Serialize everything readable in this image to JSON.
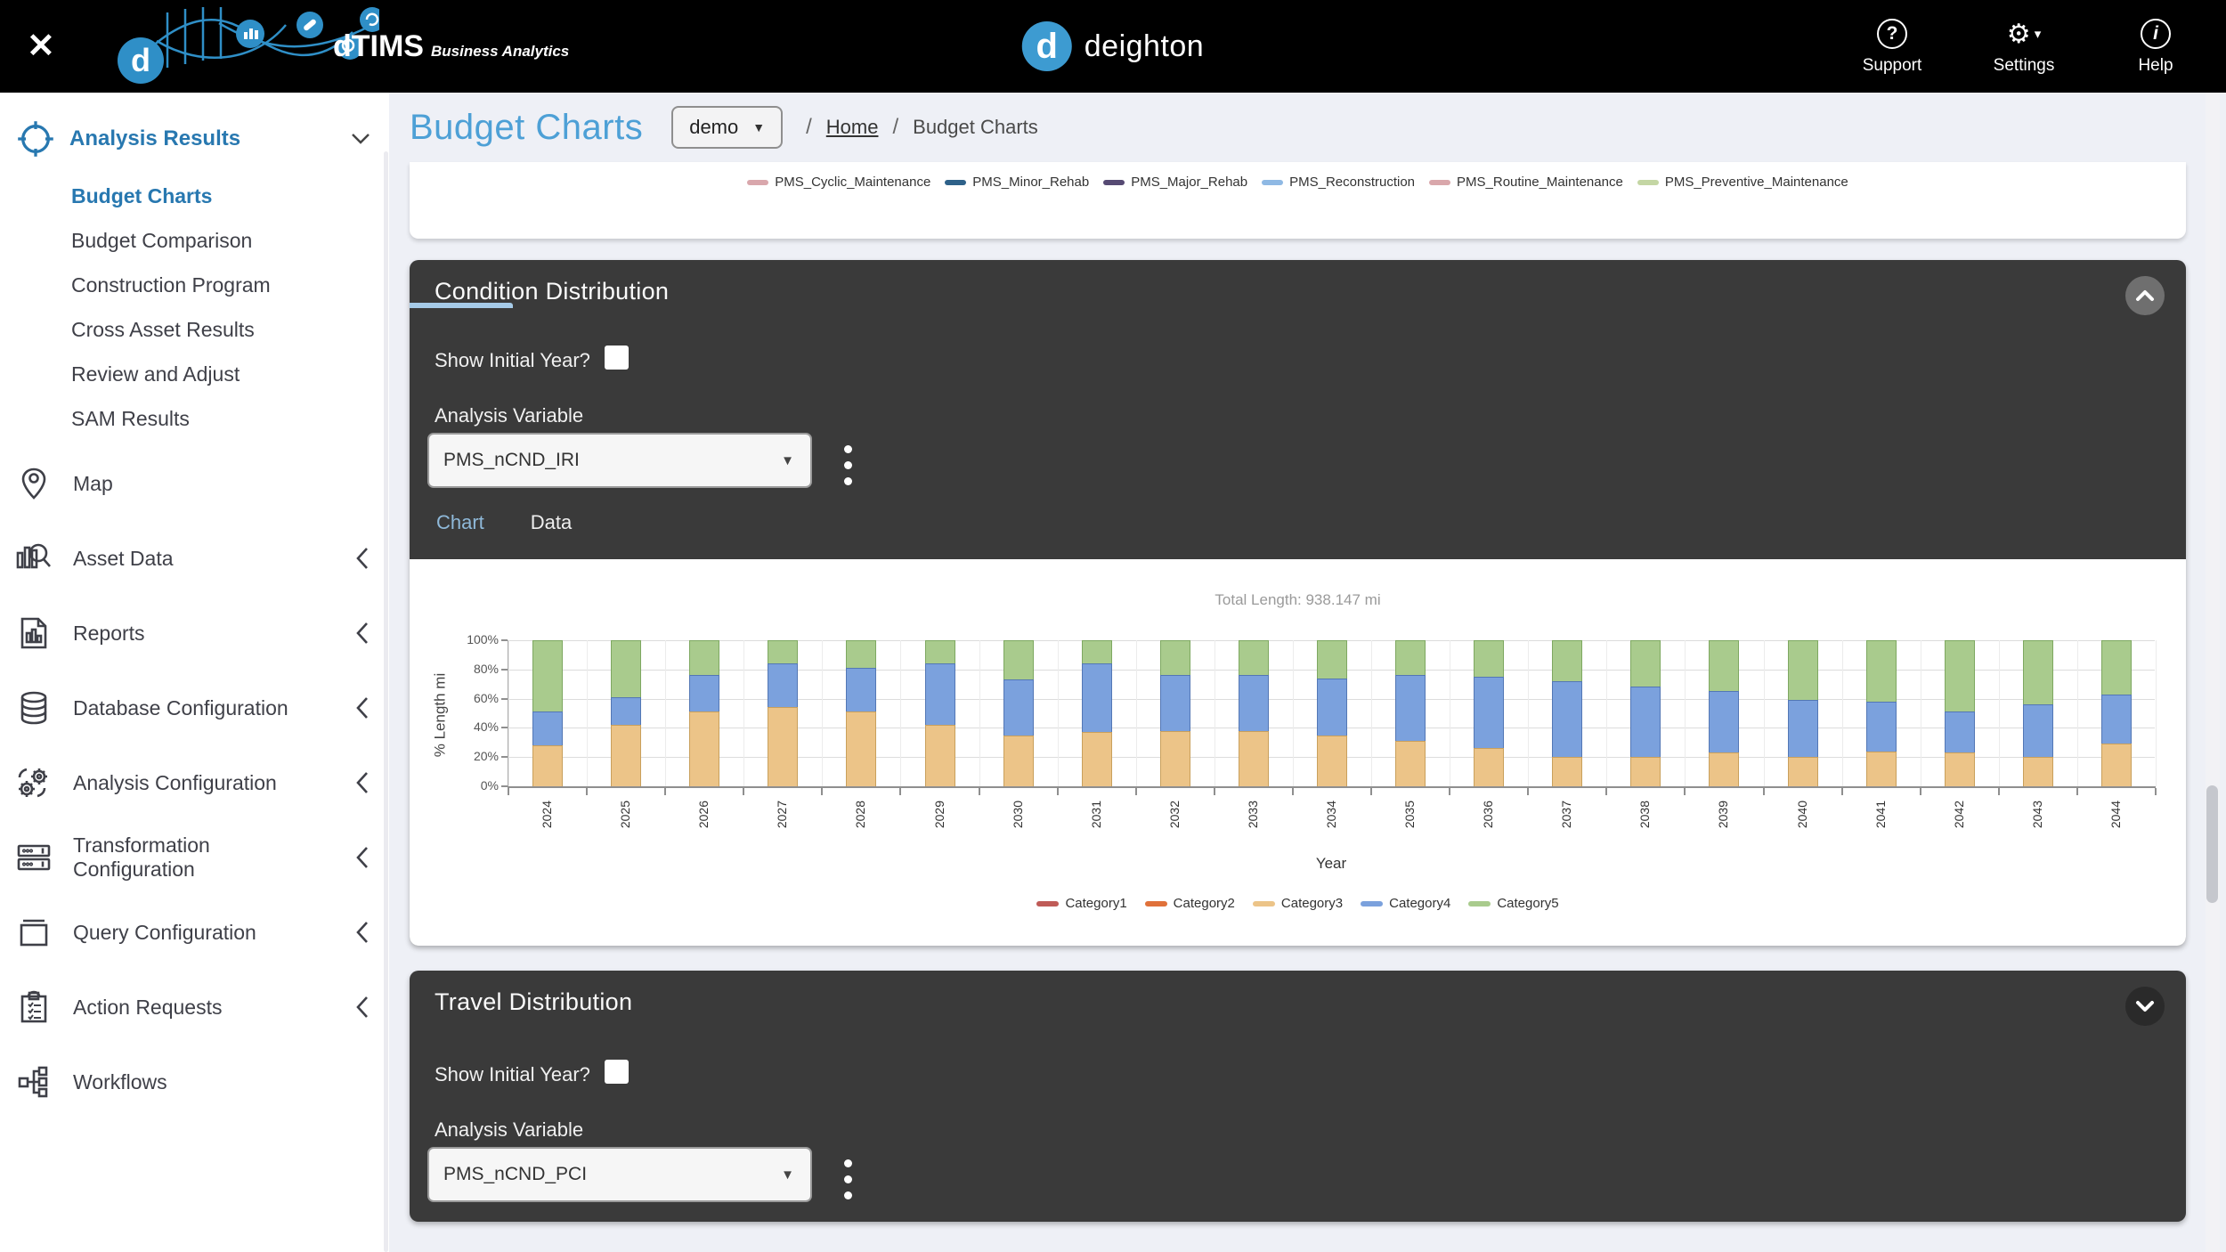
{
  "topbar": {
    "close": "✕",
    "brand": "dTIMS",
    "brand_sub": "Business Analytics",
    "center_brand": "deighton",
    "center_brand_letter": "d",
    "support": "Support",
    "settings": "Settings",
    "help": "Help",
    "support_glyph": "?",
    "help_glyph": "i",
    "settings_glyph": "⚙",
    "settings_caret": "▾"
  },
  "page": {
    "title": "Budget Charts",
    "scenario": "demo",
    "scenario_caret": "▼",
    "sep1": "/",
    "breadcrumb_home": "Home",
    "sep2": "/",
    "breadcrumb_current": "Budget Charts"
  },
  "sidebar": {
    "header_label": "Analysis Results",
    "analysis_items": [
      {
        "label": "Budget Charts",
        "active": true
      },
      {
        "label": "Budget Comparison",
        "active": false
      },
      {
        "label": "Construction Program",
        "active": false
      },
      {
        "label": "Cross Asset Results",
        "active": false
      },
      {
        "label": "Review and Adjust",
        "active": false
      },
      {
        "label": "SAM Results",
        "active": false
      }
    ],
    "nav_items": [
      {
        "label": "Map",
        "icon": "map-pin-icon",
        "expandable": false
      },
      {
        "label": "Asset Data",
        "icon": "asset-data-icon",
        "expandable": true
      },
      {
        "label": "Reports",
        "icon": "reports-icon",
        "expandable": true
      },
      {
        "label": "Database Configuration",
        "icon": "database-icon",
        "expandable": true
      },
      {
        "label": "Analysis Configuration",
        "icon": "gears-icon",
        "expandable": true
      },
      {
        "label": "Transformation Configuration",
        "icon": "transform-icon",
        "expandable": true
      },
      {
        "label": "Query Configuration",
        "icon": "query-icon",
        "expandable": true
      },
      {
        "label": "Action Requests",
        "icon": "clipboard-icon",
        "expandable": true
      },
      {
        "label": "Workflows",
        "icon": "workflow-icon",
        "expandable": false
      }
    ]
  },
  "budget_chart_legend": [
    {
      "label": "PMS_Cyclic_Maintenance",
      "color": "#d9a7ac"
    },
    {
      "label": "PMS_Minor_Rehab",
      "color": "#2e6189"
    },
    {
      "label": "PMS_Major_Rehab",
      "color": "#564a73"
    },
    {
      "label": "PMS_Reconstruction",
      "color": "#8fb9e4"
    },
    {
      "label": "PMS_Routine_Maintenance",
      "color": "#d9a7ab"
    },
    {
      "label": "PMS_Preventive_Maintenance",
      "color": "#c4d6a4"
    }
  ],
  "condition_panel": {
    "title": "Condition Distribution",
    "show_initial_year_label": "Show Initial Year?",
    "analysis_variable_label": "Analysis Variable",
    "analysis_variable_value": "PMS_nCND_IRI",
    "select_caret": "▼",
    "tab_chart": "Chart",
    "tab_data": "Data"
  },
  "travel_panel": {
    "title": "Travel Distribution",
    "show_initial_year_label": "Show Initial Year?",
    "analysis_variable_label": "Analysis Variable",
    "analysis_variable_value": "PMS_nCND_PCI",
    "select_caret": "▼"
  },
  "chart_data": {
    "type": "bar",
    "stacked": true,
    "title": "Total Length: 938.147 mi",
    "xlabel": "Year",
    "ylabel": "% Length mi",
    "ylim": [
      0,
      100
    ],
    "y_ticks": [
      "0%",
      "20%",
      "40%",
      "60%",
      "80%",
      "100%"
    ],
    "grid": true,
    "legend_position": "bottom",
    "categories": [
      "2024",
      "2025",
      "2026",
      "2027",
      "2028",
      "2029",
      "2030",
      "2031",
      "2032",
      "2033",
      "2034",
      "2035",
      "2036",
      "2037",
      "2038",
      "2039",
      "2040",
      "2041",
      "2042",
      "2043",
      "2044"
    ],
    "series": [
      {
        "name": "Category1",
        "color": "#bf5b57",
        "border": "#9e4744",
        "values": [
          0,
          0,
          0,
          0,
          0,
          0,
          0,
          0,
          0,
          0,
          0,
          0,
          0,
          0,
          0,
          0,
          0,
          0,
          0,
          0,
          0
        ]
      },
      {
        "name": "Category2",
        "color": "#e0713a",
        "border": "#b85a2c",
        "values": [
          0,
          0,
          0,
          0,
          0,
          0,
          0,
          0,
          0,
          0,
          0,
          0,
          0,
          0,
          0,
          0,
          0,
          0,
          0,
          0,
          0
        ]
      },
      {
        "name": "Category3",
        "color": "#ecc488",
        "border": "#c9a05c",
        "values": [
          28,
          42,
          51,
          54,
          51,
          42,
          35,
          37,
          38,
          38,
          35,
          31,
          26,
          20,
          20,
          23,
          20,
          24,
          23,
          20,
          29
        ]
      },
      {
        "name": "Category4",
        "color": "#7ba1dd",
        "border": "#5377b5",
        "values": [
          23,
          19,
          25,
          30,
          30,
          42,
          38,
          47,
          38,
          38,
          39,
          45,
          49,
          52,
          48,
          42,
          39,
          34,
          28,
          36,
          34
        ]
      },
      {
        "name": "Category5",
        "color": "#a9cb8d",
        "border": "#7ea861",
        "values": [
          49,
          39,
          24,
          16,
          19,
          16,
          27,
          16,
          24,
          24,
          26,
          24,
          25,
          28,
          32,
          35,
          41,
          42,
          49,
          44,
          37
        ]
      }
    ]
  }
}
